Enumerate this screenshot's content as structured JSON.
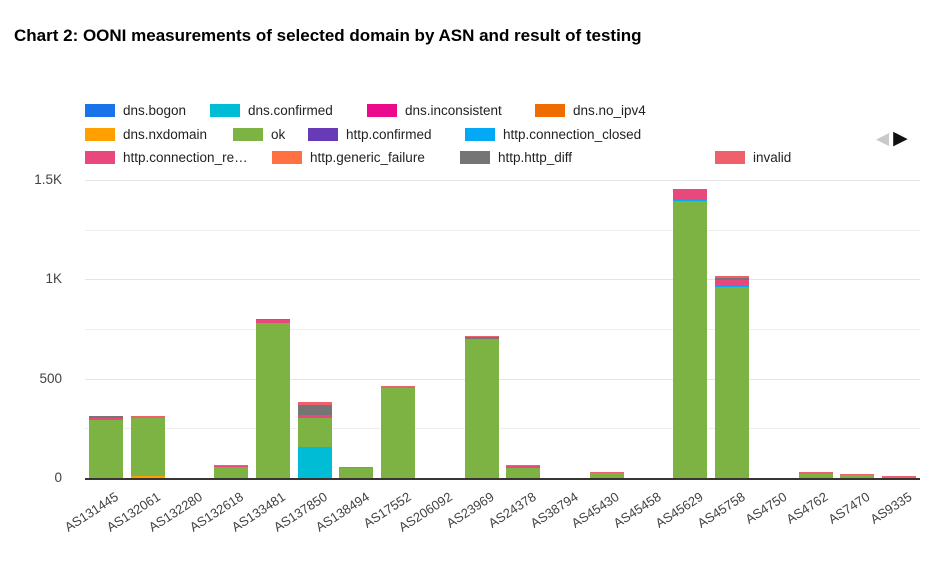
{
  "title": "Chart 2: OONI measurements of selected domain by ASN and result of testing",
  "legend": {
    "nav_prev": "◀",
    "nav_next": "▶"
  },
  "chart_data": {
    "type": "bar",
    "stacked": true,
    "title": "Chart 2: OONI measurements of selected domain by ASN and result of testing",
    "xlabel": "",
    "ylabel": "",
    "ylim": [
      0,
      1550
    ],
    "grid": true,
    "legend_position": "top",
    "yticks": [
      {
        "value": 0,
        "label": "0"
      },
      {
        "value": 500,
        "label": "500"
      },
      {
        "value": 1000,
        "label": "1K"
      },
      {
        "value": 1500,
        "label": "1.5K"
      }
    ],
    "gridline_values": [
      250,
      500,
      750,
      1000,
      1250,
      1500
    ],
    "categories": [
      "AS131445",
      "AS132061",
      "AS132280",
      "AS132618",
      "AS133481",
      "AS137850",
      "AS138494",
      "AS17552",
      "AS206092",
      "AS23969",
      "AS24378",
      "AS38794",
      "AS45430",
      "AS45458",
      "AS45629",
      "AS45758",
      "AS4750",
      "AS4762",
      "AS7470",
      "AS9335"
    ],
    "series": [
      {
        "name": "dns.bogon",
        "color": "#1A73E8",
        "values": [
          0,
          0,
          0,
          0,
          0,
          0,
          0,
          0,
          0,
          0,
          0,
          0,
          0,
          0,
          0,
          0,
          0,
          0,
          0,
          0
        ]
      },
      {
        "name": "dns.confirmed",
        "color": "#00BCD4",
        "values": [
          0,
          0,
          0,
          0,
          0,
          150,
          0,
          0,
          0,
          0,
          0,
          0,
          0,
          0,
          0,
          0,
          0,
          0,
          0,
          0
        ]
      },
      {
        "name": "dns.inconsistent",
        "color": "#EA0B8C",
        "values": [
          0,
          0,
          0,
          0,
          0,
          0,
          0,
          0,
          0,
          0,
          0,
          0,
          0,
          0,
          0,
          0,
          0,
          0,
          0,
          0
        ]
      },
      {
        "name": "dns.no_ipv4",
        "color": "#EF6C00",
        "values": [
          0,
          0,
          0,
          0,
          0,
          8,
          0,
          0,
          0,
          0,
          0,
          0,
          0,
          0,
          0,
          0,
          0,
          0,
          0,
          0
        ]
      },
      {
        "name": "dns.nxdomain",
        "color": "#FFA000",
        "values": [
          0,
          8,
          0,
          0,
          0,
          0,
          0,
          0,
          0,
          0,
          0,
          0,
          0,
          0,
          0,
          0,
          0,
          0,
          0,
          0
        ]
      },
      {
        "name": "ok",
        "color": "#7CB342",
        "values": [
          290,
          293,
          2,
          55,
          780,
          145,
          48,
          455,
          2,
          700,
          52,
          1,
          25,
          1,
          1395,
          960,
          1,
          22,
          14,
          2
        ]
      },
      {
        "name": "http.confirmed",
        "color": "#673AB7",
        "values": [
          0,
          0,
          0,
          0,
          0,
          0,
          0,
          0,
          0,
          0,
          0,
          0,
          0,
          0,
          0,
          0,
          0,
          0,
          0,
          0
        ]
      },
      {
        "name": "http.connection_closed",
        "color": "#03A9F4",
        "values": [
          0,
          0,
          0,
          0,
          0,
          0,
          0,
          0,
          0,
          0,
          0,
          0,
          0,
          0,
          9,
          8,
          0,
          0,
          0,
          0
        ]
      },
      {
        "name": "http.connection_re…",
        "color": "#E8487C",
        "values": [
          14,
          0,
          0,
          6,
          14,
          16,
          5,
          0,
          0,
          0,
          7,
          0,
          0,
          0,
          52,
          28,
          0,
          0,
          0,
          0
        ]
      },
      {
        "name": "http.generic_failure",
        "color": "#FF7043",
        "values": [
          0,
          0,
          0,
          0,
          0,
          0,
          0,
          0,
          0,
          0,
          0,
          0,
          0,
          0,
          0,
          0,
          0,
          0,
          0,
          0
        ]
      },
      {
        "name": "http.http_diff",
        "color": "#757575",
        "values": [
          6,
          0,
          0,
          0,
          7,
          50,
          0,
          0,
          0,
          8,
          0,
          0,
          0,
          0,
          0,
          10,
          0,
          0,
          0,
          0
        ]
      },
      {
        "name": "invalid",
        "color": "#EE616C",
        "values": [
          0,
          12,
          0,
          5,
          0,
          15,
          4,
          8,
          0,
          7,
          6,
          0,
          7,
          0,
          0,
          10,
          0,
          8,
          8,
          8
        ]
      }
    ]
  }
}
